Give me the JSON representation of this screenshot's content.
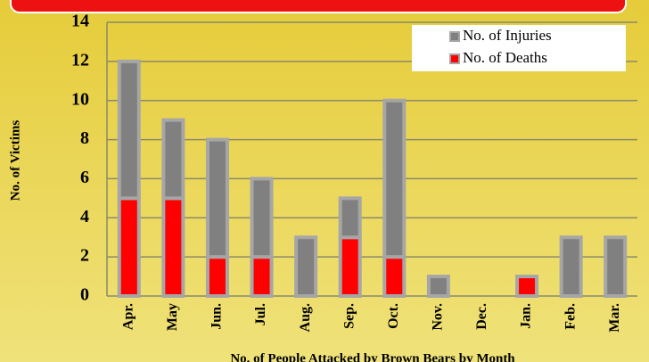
{
  "chart_data": {
    "type": "stacked_bar",
    "x_label": "No. of People Attacked by Brown Bears by Month",
    "y_label": "No. of Victims",
    "categories": [
      "Apr.",
      "May",
      "Jun.",
      "Jul.",
      "Aug.",
      "Sep.",
      "Oct.",
      "Nov.",
      "Dec.",
      "Jan.",
      "Feb.",
      "Mar."
    ],
    "series": [
      {
        "name": "No. of Injuries",
        "color": "#808080",
        "values": [
          7,
          4,
          6,
          4,
          3,
          2,
          8,
          1,
          0,
          0,
          3,
          3
        ]
      },
      {
        "name": "No. of Deaths",
        "color": "#ff0000",
        "values": [
          5,
          5,
          2,
          2,
          0,
          3,
          2,
          0,
          0,
          1,
          0,
          0
        ]
      }
    ],
    "ylim": [
      0,
      14
    ],
    "yticks": [
      0,
      2,
      4,
      6,
      8,
      10,
      12,
      14
    ],
    "grid": true,
    "legend": "upper right"
  }
}
